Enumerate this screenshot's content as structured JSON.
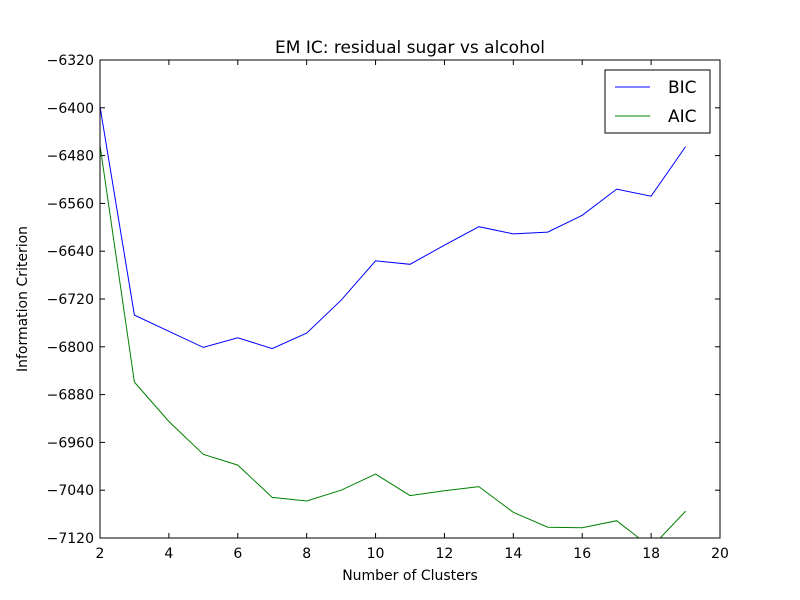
{
  "chart_data": {
    "type": "line",
    "title": "EM IC: residual sugar vs alcohol",
    "xlabel": "Number of Clusters",
    "ylabel": "Information Criterion",
    "xlim": [
      2,
      20
    ],
    "ylim": [
      -7120,
      -6320
    ],
    "xticks": [
      "2",
      "4",
      "6",
      "8",
      "10",
      "12",
      "14",
      "16",
      "18",
      "20"
    ],
    "yticks": [
      "−6320",
      "−6400",
      "−6480",
      "−6560",
      "−6640",
      "−6720",
      "−6800",
      "−6880",
      "−6960",
      "−7040",
      "−7120"
    ],
    "grid": false,
    "legend_position": "top-right",
    "x": [
      2,
      3,
      4,
      5,
      6,
      7,
      8,
      9,
      10,
      11,
      12,
      13,
      14,
      15,
      16,
      17,
      18,
      19
    ],
    "series": [
      {
        "name": "BIC",
        "color": "#0000ff",
        "values": [
          -6398,
          -6747,
          -6774,
          -6801,
          -6785,
          -6803,
          -6777,
          -6722,
          -6656,
          -6662,
          -6630,
          -6599,
          -6611,
          -6608,
          -6580,
          -6536,
          -6548,
          -6465
        ]
      },
      {
        "name": "AIC",
        "color": "#008000",
        "values": [
          -6463,
          -6859,
          -6925,
          -6980,
          -6998,
          -7052,
          -7058,
          -7040,
          -7013,
          -7049,
          -7041,
          -7034,
          -7077,
          -7102,
          -7103,
          -7091,
          -7136,
          -7075
        ]
      }
    ]
  }
}
